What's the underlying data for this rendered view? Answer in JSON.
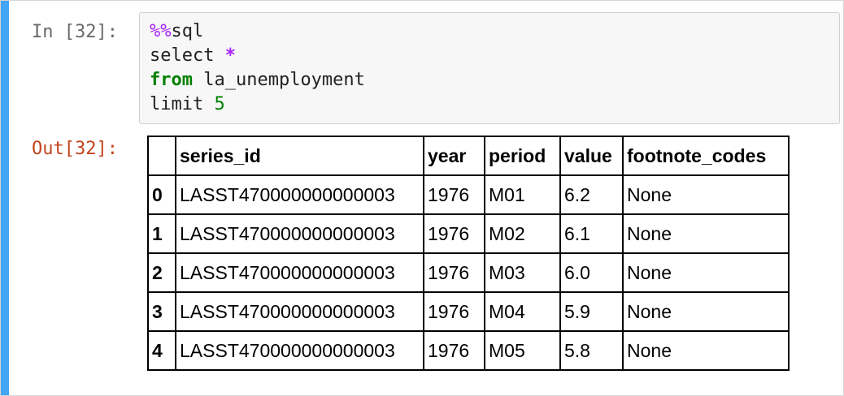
{
  "input_prompt": "In [32]:",
  "output_prompt": "Out[32]:",
  "code": {
    "magic_marker": "%%",
    "magic_name": "sql",
    "select_kw": "select",
    "select_star": "*",
    "from_kw": "from",
    "table_name": "la_unemployment",
    "limit_kw": "limit",
    "limit_value": "5"
  },
  "table": {
    "columns": [
      "series_id",
      "year",
      "period",
      "value",
      "footnote_codes"
    ],
    "rows": [
      {
        "index": "0",
        "series_id": "LASST470000000000003",
        "year": "1976",
        "period": "M01",
        "value": "6.2",
        "footnote_codes": "None"
      },
      {
        "index": "1",
        "series_id": "LASST470000000000003",
        "year": "1976",
        "period": "M02",
        "value": "6.1",
        "footnote_codes": "None"
      },
      {
        "index": "2",
        "series_id": "LASST470000000000003",
        "year": "1976",
        "period": "M03",
        "value": "6.0",
        "footnote_codes": "None"
      },
      {
        "index": "3",
        "series_id": "LASST470000000000003",
        "year": "1976",
        "period": "M04",
        "value": "5.9",
        "footnote_codes": "None"
      },
      {
        "index": "4",
        "series_id": "LASST470000000000003",
        "year": "1976",
        "period": "M05",
        "value": "5.8",
        "footnote_codes": "None"
      }
    ]
  },
  "colors": {
    "selected_bar": "#42a5f5",
    "out_prompt": "#c3441d",
    "in_prompt": "#6a6a6a",
    "magic": "#aa22ff",
    "keyword": "#008000"
  }
}
